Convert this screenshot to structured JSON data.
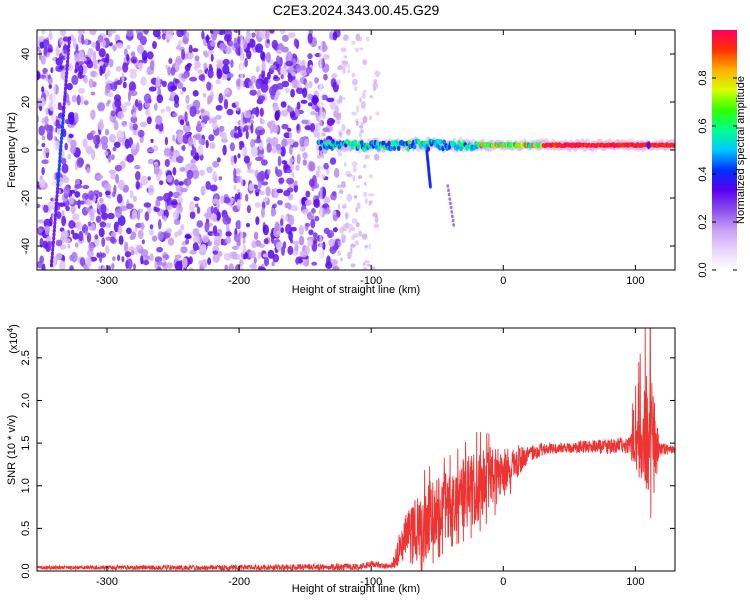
{
  "figure": {
    "title": "C2E3.2024.343.00.45.G29"
  },
  "chart_data": [
    {
      "type": "heatmap",
      "panel": "top",
      "xlabel": "Height of straight line (km)",
      "ylabel": "Frequency (Hz)",
      "xlim": [
        -353,
        130
      ],
      "ylim": [
        -50,
        50
      ],
      "xticks": [
        -300,
        -200,
        -100,
        0,
        100
      ],
      "yticks": [
        -40,
        -20,
        0,
        20,
        40
      ],
      "colorbar": {
        "label": "Normalized spectral amplitude",
        "range": [
          0,
          1
        ],
        "ticks": [
          0.0,
          0.2,
          0.4,
          0.6,
          0.8
        ],
        "tick_labels": [
          "0.0",
          "0.2",
          "0.4",
          "0.6",
          "0.8"
        ],
        "colormap": [
          "#ffffff",
          "#e9d5fb",
          "#c9a0f3",
          "#8a4fec",
          "#5a00f0",
          "#0030ff",
          "#00c8ff",
          "#00ff90",
          "#30ff00",
          "#d8ff00",
          "#ffb000",
          "#ff3000",
          "#ff0060"
        ]
      },
      "features": {
        "noise_region_x": [
          -353,
          -125
        ],
        "sparse_region_x": [
          -125,
          -95
        ],
        "tonal_line_freq_hz": 2,
        "tonal_line_start_x": -140
      }
    },
    {
      "type": "line",
      "panel": "bottom",
      "xlabel": "Height of straight line (km)",
      "ylabel": "SNR (10 * v/v)",
      "exponent_label": "(x10^4)",
      "xlim": [
        -353,
        130
      ],
      "ylim": [
        0,
        2.85
      ],
      "xticks": [
        -300,
        -200,
        -100,
        0,
        100
      ],
      "yticks": [
        0.0,
        0.5,
        1.0,
        1.5,
        2.0,
        2.5
      ],
      "ytick_labels": [
        "0.0",
        "0.5",
        "1.0",
        "1.5",
        "2.0",
        "2.5"
      ],
      "color": "#ee3333",
      "series": [
        {
          "envelope_x": [
            -353,
            -200,
            -110,
            -100,
            -85,
            -75,
            -60,
            -50,
            -40,
            -25,
            -15,
            0,
            10,
            20,
            30,
            50,
            70,
            90,
            100,
            105,
            110,
            113,
            118,
            130
          ],
          "envelope_y": [
            0.04,
            0.04,
            0.05,
            0.08,
            0.05,
            0.35,
            0.55,
            0.7,
            0.8,
            0.95,
            1.05,
            1.15,
            1.28,
            1.38,
            1.43,
            1.45,
            1.45,
            1.47,
            1.48,
            1.5,
            1.52,
            1.45,
            1.43,
            1.42
          ],
          "spread_x": [
            -353,
            -100,
            -85,
            -75,
            -60,
            -40,
            -20,
            0,
            20,
            40,
            95,
            105,
            112,
            118,
            130
          ],
          "spread_y": [
            0.02,
            0.04,
            0.03,
            0.3,
            0.45,
            0.4,
            0.45,
            0.3,
            0.1,
            0.06,
            0.1,
            0.5,
            0.9,
            0.08,
            0.04
          ]
        }
      ]
    }
  ]
}
